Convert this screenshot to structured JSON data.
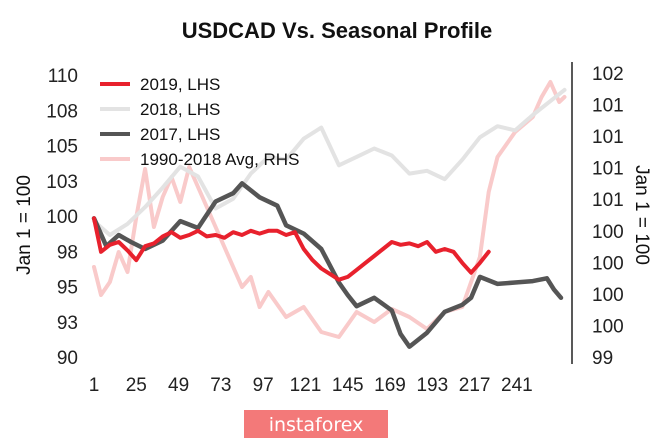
{
  "chart_data": {
    "type": "line",
    "title": "USDCAD Vs. Seasonal Profile",
    "ylabel_left": "Jan 1 = 100",
    "ylabel_right": "Jan 1 = 100",
    "x_ticks": [
      "1",
      "25",
      "49",
      "73",
      "97",
      "121",
      "145",
      "169",
      "193",
      "217",
      "241"
    ],
    "x_range": [
      1,
      270
    ],
    "y_left_ticks": [
      "110",
      "108",
      "105",
      "103",
      "100",
      "98",
      "95",
      "93",
      "90"
    ],
    "y_left_range": [
      89.5,
      111
    ],
    "y_right_ticks": [
      "102",
      "101",
      "101",
      "101",
      "101",
      "100",
      "100",
      "100",
      "100",
      "99"
    ],
    "y_right_range": [
      99.05,
      102.05
    ],
    "legend_position": "top-left",
    "series": [
      {
        "name": "2019, LHS",
        "axis": "left",
        "color": "#e8212d",
        "x": [
          1,
          5,
          10,
          15,
          20,
          25,
          30,
          35,
          40,
          45,
          50,
          55,
          60,
          65,
          70,
          75,
          80,
          85,
          90,
          95,
          100,
          105,
          110,
          115,
          120,
          125,
          130,
          135,
          140,
          145,
          150,
          155,
          160,
          165,
          170,
          175,
          180,
          185,
          190,
          195,
          200,
          205,
          210,
          215,
          220,
          225
        ],
        "values": [
          99.8,
          97.4,
          97.9,
          98.1,
          97.5,
          96.8,
          97.8,
          98.0,
          98.5,
          98.8,
          98.4,
          98.6,
          98.9,
          98.5,
          98.6,
          98.4,
          98.8,
          98.6,
          98.9,
          98.7,
          98.9,
          98.9,
          98.6,
          98.8,
          97.6,
          96.8,
          96.2,
          95.8,
          95.4,
          95.6,
          96.1,
          96.6,
          97.1,
          97.6,
          98.1,
          97.9,
          98.0,
          97.8,
          98.1,
          97.4,
          97.6,
          97.4,
          96.6,
          95.9,
          96.6,
          97.4
        ]
      },
      {
        "name": "2018, LHS",
        "axis": "left",
        "color": "#e3e3e3",
        "x": [
          1,
          10,
          20,
          30,
          40,
          50,
          60,
          70,
          80,
          90,
          100,
          110,
          120,
          130,
          140,
          150,
          160,
          170,
          180,
          190,
          200,
          210,
          220,
          230,
          240,
          250,
          260,
          268
        ],
        "values": [
          99.6,
          98.6,
          99.4,
          100.6,
          102.0,
          103.5,
          102.8,
          100.5,
          101.2,
          103.0,
          104.2,
          104.0,
          105.5,
          106.3,
          103.6,
          104.2,
          104.8,
          104.3,
          103.0,
          103.2,
          102.6,
          104.0,
          105.6,
          106.4,
          106.1,
          107.2,
          108.2,
          109.0
        ]
      },
      {
        "name": "2017, LHS",
        "axis": "left",
        "color": "#555555",
        "x": [
          1,
          8,
          15,
          22,
          30,
          40,
          50,
          60,
          70,
          80,
          85,
          95,
          105,
          110,
          120,
          130,
          140,
          145,
          150,
          160,
          170,
          175,
          180,
          190,
          200,
          210,
          215,
          220,
          230,
          240,
          250,
          258,
          262,
          266
        ],
        "values": [
          99.8,
          97.8,
          98.6,
          98.1,
          97.6,
          98.2,
          99.6,
          99.1,
          101.0,
          101.6,
          102.3,
          101.3,
          100.7,
          99.3,
          98.7,
          97.6,
          95.2,
          94.3,
          93.5,
          94.1,
          93.2,
          91.5,
          90.6,
          91.6,
          93.1,
          93.6,
          94.1,
          95.6,
          95.1,
          95.2,
          95.3,
          95.5,
          94.7,
          94.1
        ]
      },
      {
        "name": "1990-2018 Avg, RHS",
        "axis": "right",
        "color": "#f9caca",
        "x": [
          1,
          5,
          10,
          15,
          20,
          25,
          30,
          35,
          40,
          45,
          50,
          55,
          60,
          65,
          70,
          75,
          80,
          85,
          90,
          95,
          100,
          110,
          120,
          130,
          140,
          150,
          160,
          170,
          180,
          190,
          200,
          210,
          220,
          225,
          230,
          240,
          250,
          255,
          260,
          265,
          268
        ],
        "values": [
          100.0,
          99.72,
          99.85,
          100.15,
          99.95,
          100.5,
          100.98,
          100.4,
          100.7,
          100.9,
          100.65,
          101.0,
          100.8,
          100.6,
          100.4,
          100.2,
          100.0,
          99.8,
          99.9,
          99.6,
          99.75,
          99.5,
          99.6,
          99.35,
          99.3,
          99.55,
          99.45,
          99.58,
          99.5,
          99.38,
          99.55,
          99.6,
          100.1,
          100.75,
          101.1,
          101.35,
          101.5,
          101.7,
          101.85,
          101.65,
          101.7
        ]
      }
    ]
  },
  "watermark": {
    "text": "instaforex"
  }
}
